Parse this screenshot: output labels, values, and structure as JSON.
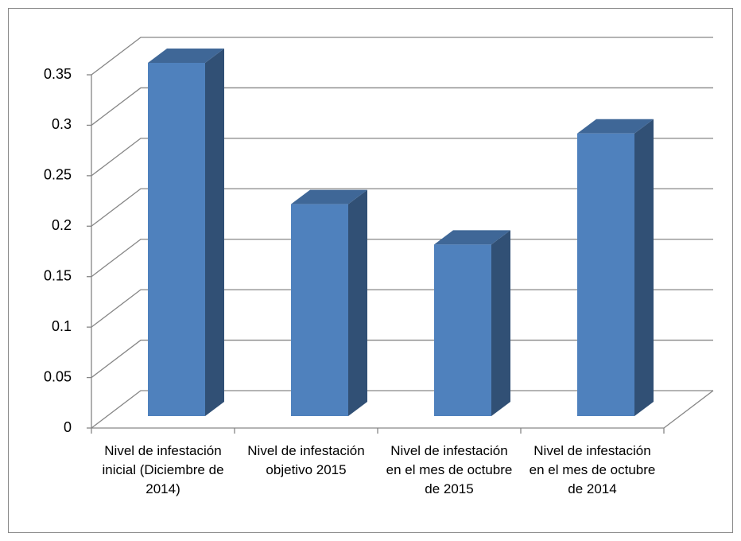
{
  "chart_data": {
    "type": "bar3d",
    "categories": [
      "Nivel de infestación inicial (Diciembre de 2014)",
      "Nivel de infestación objetivo 2015",
      "Nivel de infestación en el mes de octubre de 2015",
      "Nivel de infestación en el mes de octubre de 2014"
    ],
    "values": [
      0.35,
      0.21,
      0.17,
      0.28
    ],
    "color": "#4f81bd",
    "ylim": [
      0,
      0.35
    ],
    "yticks": [
      0,
      0.05,
      0.1,
      0.15,
      0.2,
      0.25,
      0.3,
      0.35
    ],
    "grid": true
  }
}
